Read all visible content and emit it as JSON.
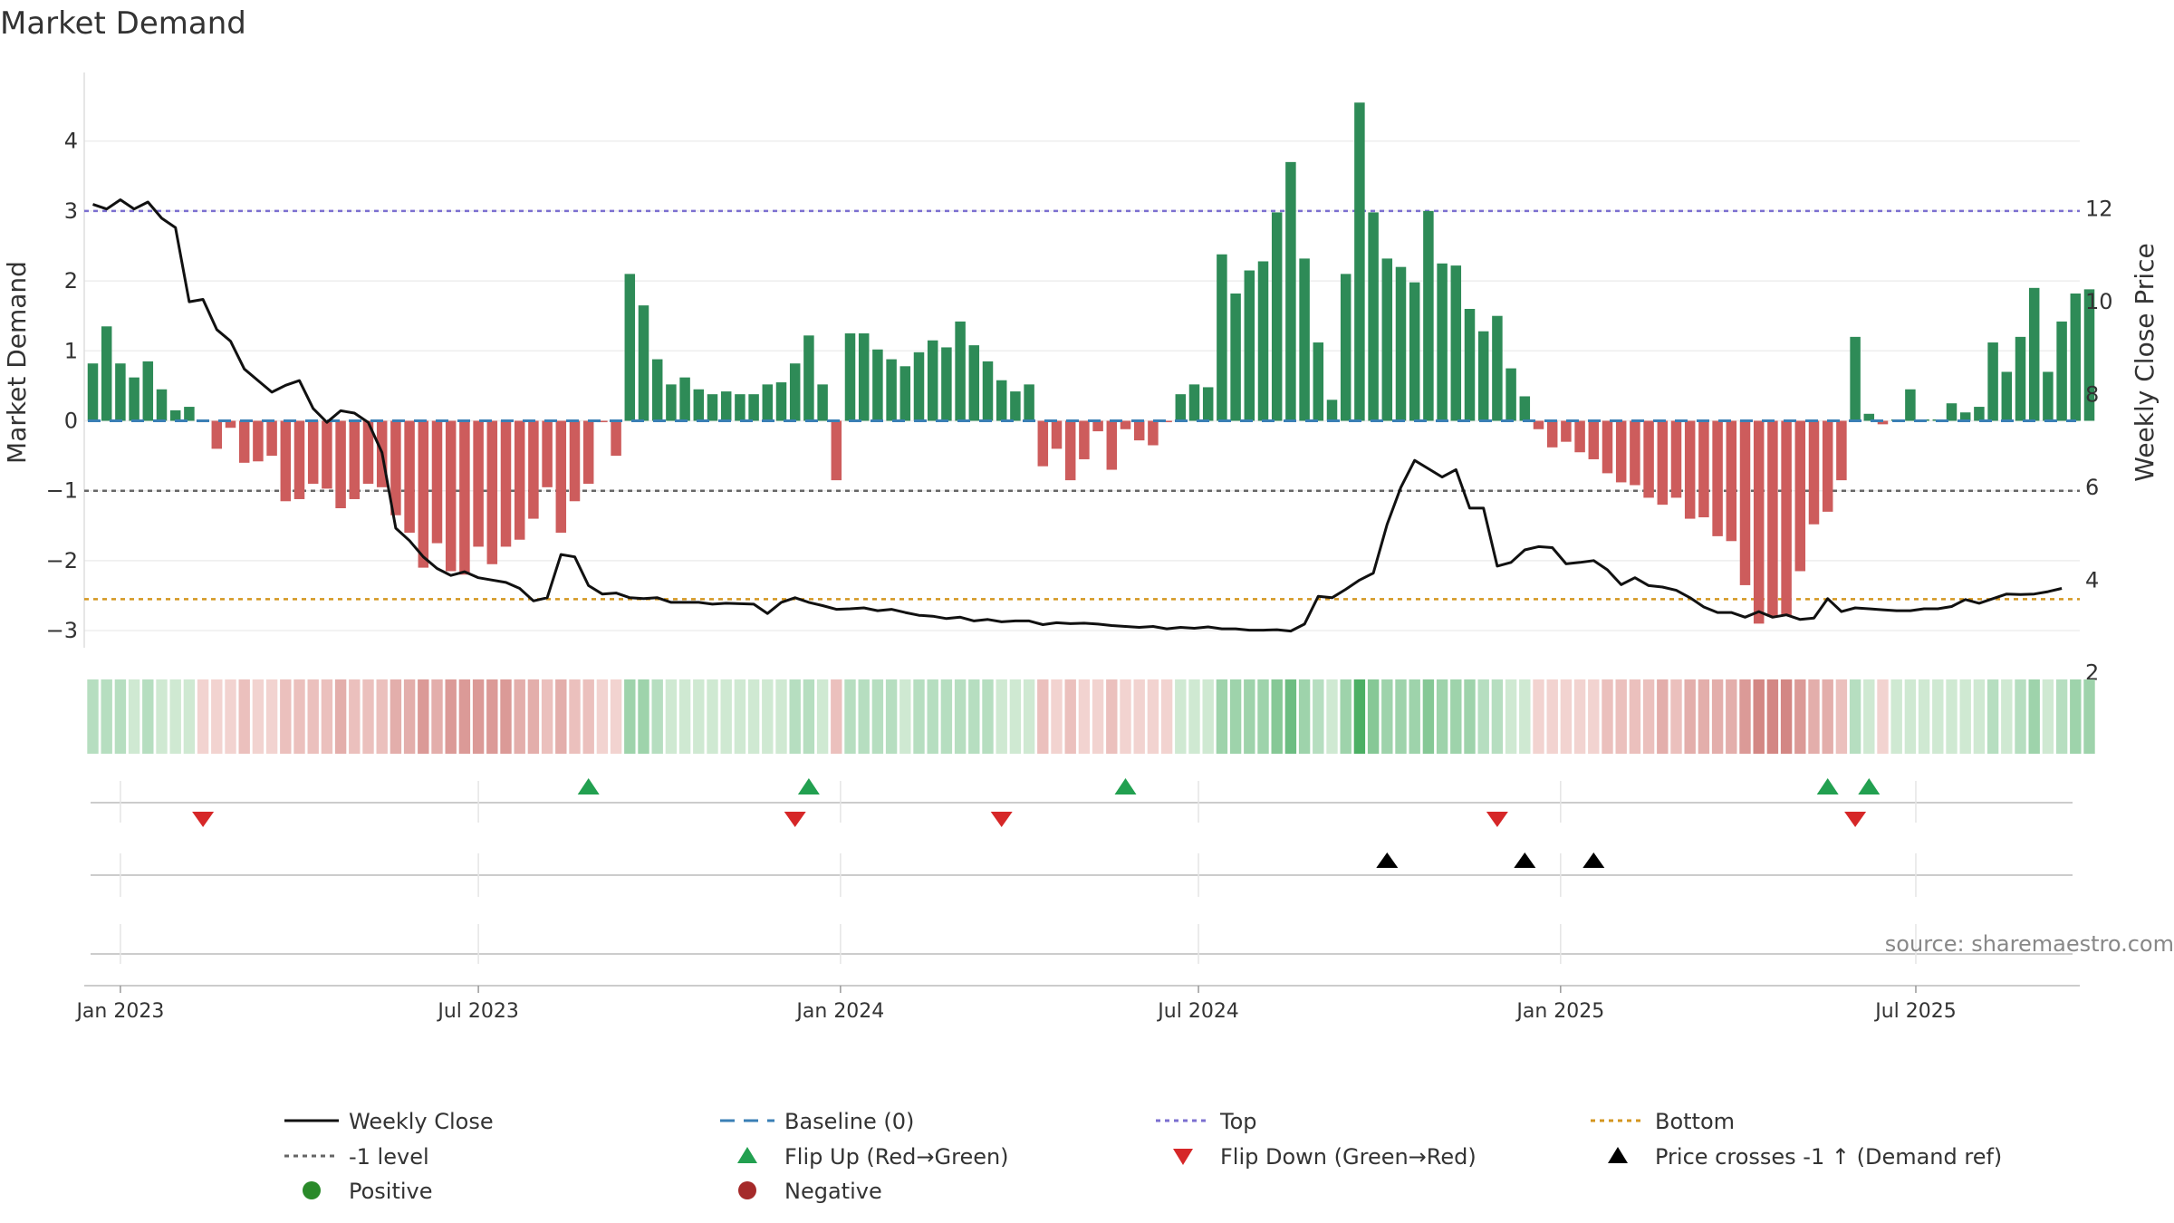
{
  "chart_data": {
    "type": "bar",
    "title": "Market Demand",
    "ylabel_left": "Market Demand",
    "ylabel_right": "Weekly Close Price",
    "source": "source: sharemaestro.com",
    "ylim_left": [
      -3.3,
      4.9
    ],
    "ylim_right": [
      0.55,
      13.0
    ],
    "yticks_left": [
      -3,
      -2,
      -1,
      0,
      1,
      2,
      3,
      4
    ],
    "yticks_right": [
      2,
      4,
      6,
      8,
      10,
      12
    ],
    "x_start": "2022-12-19",
    "x_ticks": [
      {
        "label": "Jan 2023",
        "week": 2
      },
      {
        "label": "Jul 2023",
        "week": 28
      },
      {
        "label": "Jan 2024",
        "week": 54.3
      },
      {
        "label": "Jul 2024",
        "week": 80.3
      },
      {
        "label": "Jan 2025",
        "week": 106.6
      },
      {
        "label": "Jul 2025",
        "week": 132.4
      }
    ],
    "levels": {
      "top": 3.0,
      "minus_one": -1.0,
      "bottom": -2.55
    },
    "demand": [
      0.82,
      1.35,
      0.82,
      0.62,
      0.85,
      0.45,
      0.15,
      0.2,
      -0.02,
      -0.4,
      -0.1,
      -0.6,
      -0.58,
      -0.5,
      -1.15,
      -1.12,
      -0.9,
      -0.97,
      -1.25,
      -1.12,
      -0.9,
      -0.95,
      -1.35,
      -1.6,
      -2.1,
      -1.75,
      -2.15,
      -2.2,
      -1.8,
      -2.05,
      -1.8,
      -1.7,
      -1.4,
      -0.95,
      -1.6,
      -1.15,
      -0.9,
      -0.02,
      -0.5,
      2.1,
      1.65,
      0.88,
      0.52,
      0.62,
      0.45,
      0.38,
      0.42,
      0.38,
      0.38,
      0.52,
      0.55,
      0.82,
      1.22,
      0.52,
      -0.85,
      1.25,
      1.25,
      1.02,
      0.88,
      0.78,
      0.98,
      1.15,
      1.05,
      1.42,
      1.08,
      0.85,
      0.58,
      0.42,
      0.52,
      -0.65,
      -0.4,
      -0.85,
      -0.55,
      -0.15,
      -0.7,
      -0.12,
      -0.28,
      -0.35,
      -0.02,
      0.38,
      0.52,
      0.48,
      2.38,
      1.82,
      2.15,
      2.28,
      2.98,
      3.7,
      2.32,
      1.12,
      0.3,
      2.1,
      4.55,
      2.98,
      2.32,
      2.2,
      1.98,
      3.0,
      2.25,
      2.22,
      1.6,
      1.28,
      1.5,
      0.75,
      0.35,
      -0.12,
      -0.38,
      -0.3,
      -0.45,
      -0.55,
      -0.75,
      -0.88,
      -0.92,
      -1.1,
      -1.2,
      -1.1,
      -1.4,
      -1.38,
      -1.65,
      -1.72,
      -2.35,
      -2.9,
      -2.8,
      -2.78,
      -2.15,
      -1.48,
      -1.3,
      -0.85,
      1.2,
      0.1,
      -0.05,
      0.02,
      0.45,
      0.02,
      0.02,
      0.25,
      0.12,
      0.2,
      1.12,
      0.7,
      1.2,
      1.9,
      0.7,
      1.42,
      1.82,
      1.88
    ],
    "weekly_close": [
      12.1,
      12.0,
      12.2,
      12.0,
      12.15,
      11.8,
      11.6,
      10.0,
      10.05,
      9.4,
      9.15,
      8.55,
      8.3,
      8.05,
      8.2,
      8.3,
      7.7,
      7.4,
      7.65,
      7.6,
      7.4,
      6.75,
      5.12,
      4.85,
      4.5,
      4.25,
      4.1,
      4.18,
      4.05,
      4.0,
      3.95,
      3.82,
      3.55,
      3.62,
      4.55,
      4.5,
      3.88,
      3.7,
      3.72,
      3.62,
      3.6,
      3.62,
      3.52,
      3.52,
      3.52,
      3.48,
      3.5,
      3.49,
      3.48,
      3.28,
      3.52,
      3.62,
      3.52,
      3.45,
      3.37,
      3.38,
      3.4,
      3.34,
      3.37,
      3.3,
      3.24,
      3.22,
      3.17,
      3.2,
      3.12,
      3.15,
      3.1,
      3.12,
      3.12,
      3.04,
      3.08,
      3.06,
      3.07,
      3.05,
      3.02,
      3.0,
      2.98,
      3.0,
      2.95,
      2.98,
      2.96,
      2.99,
      2.95,
      2.95,
      2.92,
      2.92,
      2.93,
      2.9,
      3.05,
      3.65,
      3.62,
      3.8,
      4.0,
      4.15,
      5.2,
      6.0,
      6.58,
      6.4,
      6.22,
      6.38,
      5.55,
      5.55,
      4.3,
      4.38,
      4.65,
      4.72,
      4.7,
      4.35,
      4.38,
      4.42,
      4.22,
      3.9,
      4.05,
      3.88,
      3.85,
      3.78,
      3.62,
      3.42,
      3.3,
      3.3,
      3.2,
      3.32,
      3.2,
      3.25,
      3.15,
      3.18,
      3.6,
      3.32,
      3.4,
      3.38,
      3.36,
      3.34,
      3.34,
      3.38,
      3.38,
      3.43,
      3.58,
      3.5,
      3.6,
      3.7,
      3.69,
      3.7,
      3.75,
      3.82
    ],
    "flip_up_weeks": [
      36,
      52,
      75,
      126,
      129
    ],
    "flip_down_weeks": [
      8,
      51,
      66,
      102,
      128
    ],
    "price_cross_weeks": [
      94,
      104,
      109
    ]
  },
  "legend": {
    "items": [
      {
        "key": "close",
        "label": "Weekly Close"
      },
      {
        "key": "baseline",
        "label": "Baseline (0)"
      },
      {
        "key": "top",
        "label": "Top"
      },
      {
        "key": "bottom",
        "label": "Bottom"
      },
      {
        "key": "minus1",
        "label": "-1 level"
      },
      {
        "key": "flipup",
        "label": "Flip Up (Red→Green)"
      },
      {
        "key": "flipdown",
        "label": "Flip Down (Green→Red)"
      },
      {
        "key": "cross",
        "label": "Price crosses -1 ↑ (Demand ref)"
      },
      {
        "key": "positive",
        "label": "Positive"
      },
      {
        "key": "negative",
        "label": "Negative"
      }
    ]
  },
  "colors": {
    "positive": "#2e8b57",
    "negative": "#cd5c5c",
    "close": "#111111",
    "baseline": "#3a7fb5",
    "top": "#7b6fd0",
    "minus_one": "#666666",
    "bottom": "#d4961f",
    "flip_up": "#22a050",
    "flip_down": "#d62728",
    "cross": "#000000",
    "positive_dot": "#2a8a2a",
    "negative_dot": "#a52a2a"
  }
}
